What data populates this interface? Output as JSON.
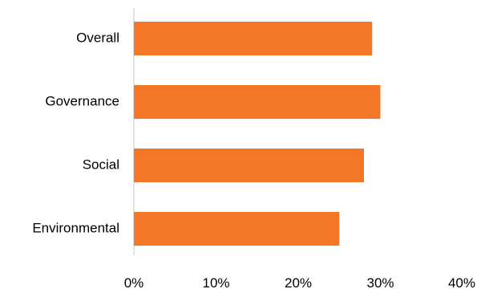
{
  "chart_data": {
    "type": "bar",
    "orientation": "horizontal",
    "categories": [
      "Overall",
      "Governance",
      "Social",
      "Environmental"
    ],
    "values": [
      29,
      30,
      28,
      25
    ],
    "xlim": [
      0,
      40
    ],
    "ticks": [
      0,
      10,
      20,
      30,
      40
    ],
    "tick_labels": [
      "0%",
      "10%",
      "20%",
      "30%",
      "40%"
    ],
    "bar_color": "#F47727",
    "axis_color": "#D9D9D9",
    "grid": false,
    "title": "",
    "xlabel": "",
    "ylabel": ""
  }
}
